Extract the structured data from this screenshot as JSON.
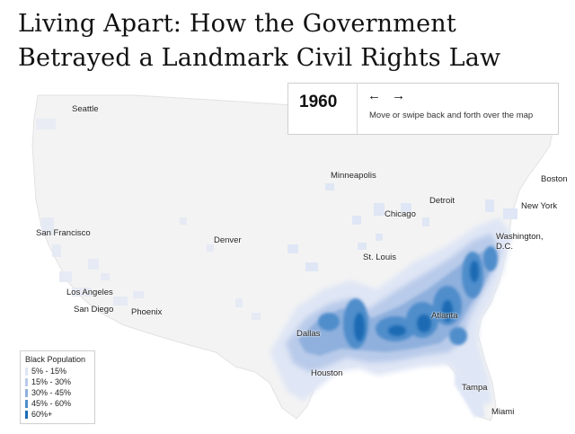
{
  "title": "Living Apart: How the Government Betrayed a Landmark Civil Rights Law",
  "control": {
    "year": "1960",
    "arrows": "← →",
    "hint": "Move or swipe back and forth over the map"
  },
  "legend": {
    "title": "Black Population",
    "items": [
      {
        "label": "5%  - 15%",
        "color": "#dfe6f5"
      },
      {
        "label": "15% - 30%",
        "color": "#b9cbea"
      },
      {
        "label": "30% - 45%",
        "color": "#8fb0dd"
      },
      {
        "label": "45% - 60%",
        "color": "#4f8dcb"
      },
      {
        "label": "60%+",
        "color": "#1c6bb3"
      }
    ]
  },
  "cities": {
    "seattle": "Seattle",
    "san_francisco": "San Francisco",
    "los_angeles": "Los Angeles",
    "san_diego": "San Diego",
    "phoenix": "Phoenix",
    "denver": "Denver",
    "minneapolis": "Minneapolis",
    "chicago": "Chicago",
    "detroit": "Detroit",
    "st_louis": "St. Louis",
    "dallas": "Dallas",
    "houston": "Houston",
    "atlanta": "Atlanta",
    "tampa": "Tampa",
    "miami": "Miami",
    "washington": "Washington, D.C.",
    "new_york": "New York",
    "boston": "Boston"
  }
}
